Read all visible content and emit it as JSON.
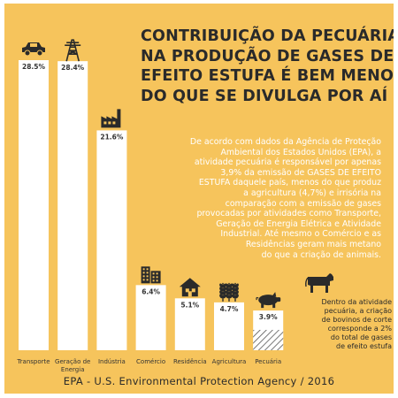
{
  "headline": [
    "CONTRIBUIÇÃO DA PECUÁRIA",
    "NA PRODUÇÃO DE GASES DE",
    "EFEITO ESTUFA É BEM MENOR",
    "DO QUE SE DIVULGA POR AÍ"
  ],
  "body_text": [
    "De acordo com dados da Agência de Proteção",
    "Ambiental dos Estados Unidos (EPA), a",
    "atividade pecuária é responsável por apenas",
    "3,9% da emissão de GASES DE EFEITO",
    "ESTUFA daquele país, menos do que produz",
    "a agricultura (4,7%) e irrisória na",
    "comparação com a emissão de gases",
    "provocadas por atividades como Transporte,",
    "Geração de Energia Elétrica e Atividade",
    "Industrial. Até mesmo o Comércio e as",
    "Residências geram mais metano",
    "do que a criação de animais."
  ],
  "footnote": [
    "Dentro da atividade",
    "pecuária, a criação",
    "de bovinos de corte",
    "corresponde a 2%",
    "do total de gases",
    "de efeito estufa"
  ],
  "source": "EPA - U.S. Environmental Protection Agency / 2016",
  "colors": {
    "background": "#f6c45c",
    "bar": "#ffffff",
    "text_dark": "#2a2a2a",
    "icon": "#2a2a2a"
  },
  "chart_data": {
    "type": "bar",
    "categories": [
      "Transporte",
      "Geração de Energia",
      "Indústria",
      "Comércio",
      "Residência",
      "Agricultura",
      "Pecuária"
    ],
    "category_lines": [
      [
        "Transporte"
      ],
      [
        "Geração de",
        "Energia"
      ],
      [
        "Indústria"
      ],
      [
        "Comércio"
      ],
      [
        "Residência"
      ],
      [
        "Agricultura"
      ],
      [
        "Pecuária"
      ]
    ],
    "values": [
      28.5,
      28.4,
      21.6,
      6.4,
      5.1,
      4.7,
      3.9
    ],
    "value_labels": [
      "28.5%",
      "28.4%",
      "21.6%",
      "6.4%",
      "5.1%",
      "4.7%",
      "3.9%"
    ],
    "icons": [
      "car-icon",
      "power-tower-icon",
      "factory-icon",
      "office-building-icon",
      "house-icon",
      "wheat-icon",
      "pig-icon"
    ],
    "highlight": {
      "category": "Pecuária",
      "value": 2,
      "pattern": "hatched",
      "icon": "cow-icon"
    },
    "title": "",
    "xlabel": "",
    "ylabel": "",
    "ylim": [
      0,
      30
    ],
    "grid": false
  }
}
